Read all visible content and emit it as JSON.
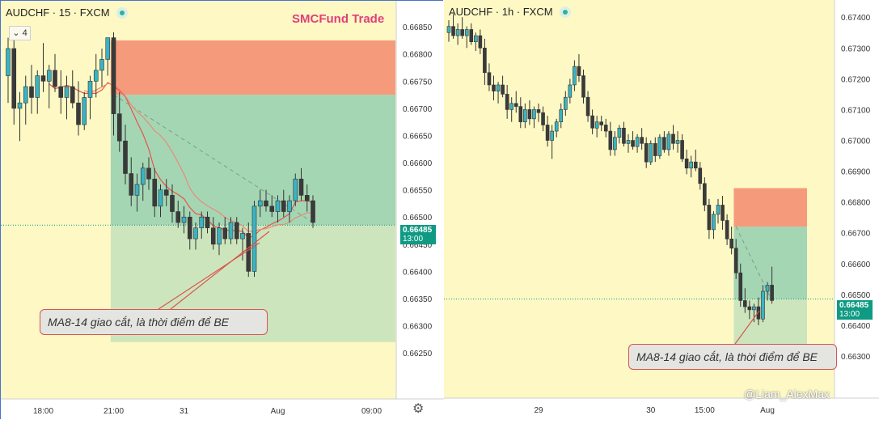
{
  "left_chart": {
    "symbol": "AUDCHF · 15 · FXCM",
    "brand": "SMCFund Trade",
    "collapse_label": "4",
    "price_tag": {
      "price": "0.66485",
      "time": "13:00"
    },
    "callout": "MA8-14 giao cắt, là thời điểm để BE",
    "settings_icon": "gear-icon"
  },
  "right_chart": {
    "symbol": "AUDCHF · 1h · FXCM",
    "price_tag": {
      "price": "0.66485",
      "time": "13:00"
    },
    "callout": "MA8-14 giao cắt, là thời điểm để BE"
  },
  "watermark": "@Liam_AlexMax",
  "colors": {
    "background": "#fdf8c4",
    "bull": "#3ab3c2",
    "bear": "#3a3a3a",
    "stop": "#f59b7c",
    "target": "#a5d6b4",
    "target_extension": "#cde5bd",
    "accent": "#0f9a83"
  },
  "chart_data": [
    {
      "type": "candlestick",
      "title": "AUDCHF · 15 · FXCM",
      "y_ticks": [
        0.6625,
        0.663,
        0.6635,
        0.664,
        0.6645,
        0.665,
        0.6655,
        0.666,
        0.6665,
        0.667,
        0.6675,
        0.668,
        0.6685
      ],
      "y_tick_labels": [
        "0.66250",
        "0.66300",
        "0.66350",
        "0.66400",
        "0.66450",
        "0.66500",
        "0.66550",
        "0.66600",
        "0.66650",
        "0.66700",
        "0.66750",
        "0.66800",
        "0.66850"
      ],
      "ylim": [
        0.6621,
        0.6688
      ],
      "x_ticks": [
        {
          "label": "18:00",
          "i": 6
        },
        {
          "label": "21:00",
          "i": 18
        },
        {
          "label": "31",
          "i": 30
        },
        {
          "label": "Aug",
          "i": 46
        },
        {
          "label": "09:00",
          "i": 62
        }
      ],
      "current_price": 0.66485,
      "position": {
        "type": "short",
        "start_index": 18,
        "entry": 0.66725,
        "stop": 0.66825,
        "target": 0.66485,
        "extended_target": 0.6627
      },
      "candles": [
        [
          0.6676,
          0.6683,
          0.6671,
          0.6681
        ],
        [
          0.6681,
          0.6683,
          0.6667,
          0.667
        ],
        [
          0.667,
          0.6673,
          0.6664,
          0.6671
        ],
        [
          0.6671,
          0.6676,
          0.6667,
          0.6674
        ],
        [
          0.6674,
          0.6678,
          0.6669,
          0.6672
        ],
        [
          0.6672,
          0.6677,
          0.6669,
          0.6676
        ],
        [
          0.6676,
          0.6682,
          0.6673,
          0.6675
        ],
        [
          0.6675,
          0.6678,
          0.667,
          0.6677
        ],
        [
          0.6677,
          0.668,
          0.6673,
          0.6674
        ],
        [
          0.6674,
          0.6677,
          0.6669,
          0.6672
        ],
        [
          0.6672,
          0.6676,
          0.6668,
          0.6674
        ],
        [
          0.6674,
          0.6677,
          0.667,
          0.6671
        ],
        [
          0.6671,
          0.6675,
          0.6665,
          0.6667
        ],
        [
          0.6667,
          0.6673,
          0.6666,
          0.6672
        ],
        [
          0.6672,
          0.6676,
          0.6668,
          0.6675
        ],
        [
          0.6675,
          0.668,
          0.6672,
          0.6677
        ],
        [
          0.6677,
          0.6681,
          0.6674,
          0.6679
        ],
        [
          0.6679,
          0.6683,
          0.6676,
          0.6683
        ],
        [
          0.6683,
          0.6684,
          0.6665,
          0.6669
        ],
        [
          0.6669,
          0.6673,
          0.6662,
          0.6664
        ],
        [
          0.6664,
          0.6667,
          0.6656,
          0.6658
        ],
        [
          0.6658,
          0.6661,
          0.6652,
          0.6654
        ],
        [
          0.6654,
          0.6658,
          0.6651,
          0.6656
        ],
        [
          0.6656,
          0.666,
          0.6653,
          0.6659
        ],
        [
          0.6659,
          0.6661,
          0.6655,
          0.6657
        ],
        [
          0.6657,
          0.6659,
          0.665,
          0.6652
        ],
        [
          0.6652,
          0.6656,
          0.665,
          0.6655
        ],
        [
          0.6655,
          0.6657,
          0.6652,
          0.6654
        ],
        [
          0.6654,
          0.6656,
          0.6649,
          0.6651
        ],
        [
          0.6651,
          0.6653,
          0.6648,
          0.6649
        ],
        [
          0.6649,
          0.6652,
          0.6647,
          0.665
        ],
        [
          0.665,
          0.6651,
          0.6644,
          0.6646
        ],
        [
          0.6646,
          0.6649,
          0.6644,
          0.6648
        ],
        [
          0.6648,
          0.6651,
          0.6646,
          0.665
        ],
        [
          0.665,
          0.6651,
          0.6647,
          0.6648
        ],
        [
          0.6648,
          0.665,
          0.6644,
          0.6645
        ],
        [
          0.6645,
          0.6649,
          0.6643,
          0.6648
        ],
        [
          0.6648,
          0.665,
          0.6645,
          0.6646
        ],
        [
          0.6646,
          0.665,
          0.6645,
          0.6649
        ],
        [
          0.6649,
          0.665,
          0.6645,
          0.6646
        ],
        [
          0.6646,
          0.6648,
          0.6642,
          0.6647
        ],
        [
          0.6647,
          0.6649,
          0.6639,
          0.664
        ],
        [
          0.664,
          0.6653,
          0.6639,
          0.6652
        ],
        [
          0.6652,
          0.6655,
          0.665,
          0.6653
        ],
        [
          0.6653,
          0.6655,
          0.6651,
          0.6652
        ],
        [
          0.6652,
          0.6654,
          0.665,
          0.6651
        ],
        [
          0.6651,
          0.6654,
          0.6649,
          0.6653
        ],
        [
          0.6653,
          0.6655,
          0.665,
          0.6651
        ],
        [
          0.6651,
          0.6654,
          0.6649,
          0.6653
        ],
        [
          0.6653,
          0.6658,
          0.6652,
          0.6657
        ],
        [
          0.6657,
          0.6659,
          0.6653,
          0.6654
        ],
        [
          0.6654,
          0.6656,
          0.6651,
          0.6653
        ],
        [
          0.6653,
          0.6654,
          0.6648,
          0.6649
        ]
      ]
    },
    {
      "type": "candlestick",
      "title": "AUDCHF · 1h · FXCM",
      "y_ticks": [
        0.663,
        0.664,
        0.665,
        0.666,
        0.667,
        0.668,
        0.669,
        0.67,
        0.671,
        0.672,
        0.673,
        0.674
      ],
      "y_tick_labels": [
        "0.66300",
        "0.66400",
        "0.66500",
        "0.66600",
        "0.66700",
        "0.66800",
        "0.66900",
        "0.67000",
        "0.67100",
        "0.67200",
        "0.67300",
        "0.67400"
      ],
      "ylim": [
        0.6625,
        0.6744
      ],
      "x_ticks": [
        {
          "label": "29",
          "i": 20
        },
        {
          "label": "30",
          "i": 45
        },
        {
          "label": "15:00",
          "i": 57
        },
        {
          "label": "Aug",
          "i": 71
        }
      ],
      "current_price": 0.66485,
      "position": {
        "type": "short",
        "start_index": 64,
        "entry": 0.6672,
        "stop": 0.66845,
        "target": 0.66485,
        "extended_target": 0.6627
      },
      "candles": [
        [
          0.6735,
          0.6739,
          0.6732,
          0.6737
        ],
        [
          0.6737,
          0.6741,
          0.6733,
          0.6734
        ],
        [
          0.6734,
          0.6738,
          0.6731,
          0.6736
        ],
        [
          0.6736,
          0.674,
          0.6733,
          0.6734
        ],
        [
          0.6734,
          0.6737,
          0.673,
          0.6736
        ],
        [
          0.6736,
          0.6738,
          0.6731,
          0.6732
        ],
        [
          0.6732,
          0.6735,
          0.6729,
          0.6734
        ],
        [
          0.6734,
          0.6736,
          0.6728,
          0.673
        ],
        [
          0.673,
          0.6733,
          0.6718,
          0.6722
        ],
        [
          0.6722,
          0.6725,
          0.6716,
          0.6718
        ],
        [
          0.6718,
          0.6721,
          0.6713,
          0.6716
        ],
        [
          0.6716,
          0.6719,
          0.6712,
          0.6718
        ],
        [
          0.6718,
          0.6721,
          0.6714,
          0.6715
        ],
        [
          0.6715,
          0.6718,
          0.6707,
          0.671
        ],
        [
          0.671,
          0.6714,
          0.6706,
          0.6712
        ],
        [
          0.6712,
          0.6716,
          0.6709,
          0.6711
        ],
        [
          0.6711,
          0.6714,
          0.6704,
          0.6706
        ],
        [
          0.6706,
          0.6712,
          0.6704,
          0.671
        ],
        [
          0.671,
          0.6713,
          0.6705,
          0.6707
        ],
        [
          0.6707,
          0.6711,
          0.6704,
          0.671
        ],
        [
          0.671,
          0.6712,
          0.6706,
          0.6709
        ],
        [
          0.6709,
          0.6711,
          0.6703,
          0.6705
        ],
        [
          0.6705,
          0.6708,
          0.6698,
          0.67
        ],
        [
          0.67,
          0.6705,
          0.6694,
          0.6703
        ],
        [
          0.6703,
          0.6707,
          0.6701,
          0.6706
        ],
        [
          0.6706,
          0.6712,
          0.6704,
          0.671
        ],
        [
          0.671,
          0.6716,
          0.6708,
          0.6714
        ],
        [
          0.6714,
          0.672,
          0.6712,
          0.6718
        ],
        [
          0.6718,
          0.6726,
          0.6716,
          0.6724
        ],
        [
          0.6724,
          0.6728,
          0.6719,
          0.6721
        ],
        [
          0.6721,
          0.6723,
          0.6712,
          0.6714
        ],
        [
          0.6714,
          0.6716,
          0.6706,
          0.6708
        ],
        [
          0.6708,
          0.671,
          0.6702,
          0.6704
        ],
        [
          0.6704,
          0.6708,
          0.6701,
          0.6706
        ],
        [
          0.6706,
          0.6708,
          0.6703,
          0.6705
        ],
        [
          0.6705,
          0.6707,
          0.6701,
          0.6703
        ],
        [
          0.6703,
          0.6706,
          0.6695,
          0.6697
        ],
        [
          0.6697,
          0.6703,
          0.6695,
          0.6701
        ],
        [
          0.6701,
          0.6705,
          0.6699,
          0.6704
        ],
        [
          0.6704,
          0.6706,
          0.6698,
          0.6699
        ],
        [
          0.6699,
          0.6702,
          0.6696,
          0.67
        ],
        [
          0.67,
          0.6703,
          0.6697,
          0.6698
        ],
        [
          0.6698,
          0.6702,
          0.6696,
          0.6701
        ],
        [
          0.6701,
          0.6704,
          0.6697,
          0.6699
        ],
        [
          0.6699,
          0.6701,
          0.6691,
          0.6693
        ],
        [
          0.6693,
          0.67,
          0.6692,
          0.6699
        ],
        [
          0.6699,
          0.6701,
          0.6693,
          0.6695
        ],
        [
          0.6695,
          0.6702,
          0.6694,
          0.6701
        ],
        [
          0.6701,
          0.6703,
          0.6696,
          0.6697
        ],
        [
          0.6697,
          0.6703,
          0.6695,
          0.6702
        ],
        [
          0.6702,
          0.6705,
          0.6697,
          0.6699
        ],
        [
          0.6699,
          0.6703,
          0.6696,
          0.67
        ],
        [
          0.67,
          0.6702,
          0.6693,
          0.6694
        ],
        [
          0.6694,
          0.6697,
          0.6689,
          0.6691
        ],
        [
          0.6691,
          0.6695,
          0.6688,
          0.6693
        ],
        [
          0.6693,
          0.6697,
          0.669,
          0.6691
        ],
        [
          0.6691,
          0.6693,
          0.6684,
          0.6686
        ],
        [
          0.6686,
          0.6688,
          0.6677,
          0.6679
        ],
        [
          0.6679,
          0.6681,
          0.6668,
          0.6671
        ],
        [
          0.6671,
          0.6677,
          0.6668,
          0.6676
        ],
        [
          0.6676,
          0.6681,
          0.6673,
          0.6679
        ],
        [
          0.6679,
          0.6682,
          0.6671,
          0.6674
        ],
        [
          0.6674,
          0.6676,
          0.6666,
          0.6668
        ],
        [
          0.6668,
          0.6672,
          0.6663,
          0.6665
        ],
        [
          0.6665,
          0.6668,
          0.6655,
          0.6657
        ],
        [
          0.6657,
          0.666,
          0.6646,
          0.6648
        ],
        [
          0.6648,
          0.6652,
          0.6644,
          0.6646
        ],
        [
          0.6646,
          0.6648,
          0.6642,
          0.6645
        ],
        [
          0.6645,
          0.6647,
          0.6641,
          0.6646
        ],
        [
          0.6646,
          0.6649,
          0.664,
          0.6642
        ],
        [
          0.6642,
          0.6653,
          0.6641,
          0.6651
        ],
        [
          0.6651,
          0.6654,
          0.6648,
          0.6653
        ],
        [
          0.6653,
          0.6659,
          0.6647,
          0.6648
        ]
      ]
    }
  ]
}
